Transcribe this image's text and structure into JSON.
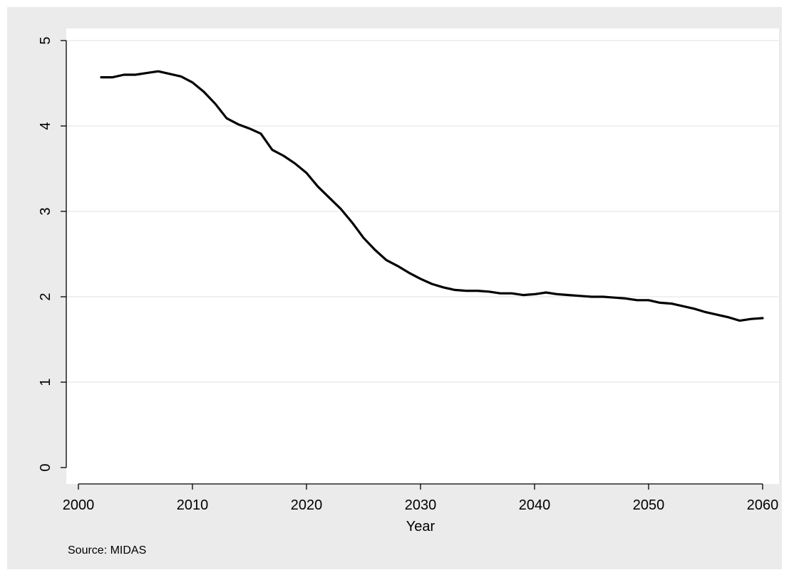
{
  "chart_data": {
    "type": "line",
    "title": "",
    "xlabel": "Year",
    "ylabel": "",
    "note": "Source: MIDAS",
    "xlim": [
      2000,
      2060
    ],
    "ylim": [
      0,
      5
    ],
    "x_ticks": [
      2000,
      2010,
      2020,
      2030,
      2040,
      2050,
      2060
    ],
    "y_ticks": [
      0,
      1,
      2,
      3,
      4,
      5
    ],
    "grid": true,
    "legend": "none",
    "colors": {
      "outer_bg": "#ebebeb",
      "plot_bg": "#ffffff",
      "grid": "#e6e6e6",
      "line": "#000000"
    },
    "series": [
      {
        "x": [
          2002,
          2003,
          2004,
          2005,
          2006,
          2007,
          2008,
          2009,
          2010,
          2011,
          2012,
          2013,
          2014,
          2015,
          2016,
          2017,
          2018,
          2019,
          2020,
          2021,
          2022,
          2023,
          2024,
          2025,
          2026,
          2027,
          2028,
          2029,
          2030,
          2031,
          2032,
          2033,
          2034,
          2035,
          2036,
          2037,
          2038,
          2039,
          2040,
          2041,
          2042,
          2043,
          2044,
          2045,
          2046,
          2047,
          2048,
          2049,
          2050,
          2051,
          2052,
          2053,
          2054,
          2055,
          2056,
          2057,
          2058,
          2059,
          2060
        ],
        "values": [
          4.57,
          4.57,
          4.6,
          4.6,
          4.62,
          4.64,
          4.61,
          4.58,
          4.51,
          4.4,
          4.26,
          4.09,
          4.02,
          3.97,
          3.91,
          3.72,
          3.65,
          3.56,
          3.45,
          3.29,
          3.16,
          3.03,
          2.87,
          2.69,
          2.55,
          2.43,
          2.36,
          2.28,
          2.21,
          2.15,
          2.11,
          2.08,
          2.07,
          2.07,
          2.06,
          2.04,
          2.04,
          2.02,
          2.03,
          2.05,
          2.03,
          2.02,
          2.01,
          2.0,
          2.0,
          1.99,
          1.98,
          1.96,
          1.96,
          1.93,
          1.92,
          1.89,
          1.86,
          1.82,
          1.79,
          1.76,
          1.72,
          1.74,
          1.75
        ]
      }
    ]
  }
}
